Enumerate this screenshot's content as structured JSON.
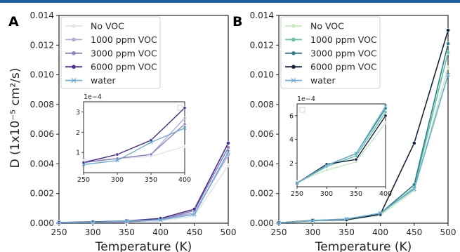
{
  "chart_data": [
    {
      "panel": "A",
      "type": "line",
      "xlabel": "Temperature (K)",
      "ylabel": "D (1x10⁻⁵ cm²/s)",
      "xlim": [
        250,
        500
      ],
      "ylim": [
        0,
        0.014
      ],
      "xticks": [
        "250",
        "300",
        "350",
        "400",
        "450",
        "500"
      ],
      "yticks": [
        "0.000",
        "0.002",
        "0.004",
        "0.006",
        "0.008",
        "0.010",
        "0.012",
        "0.014"
      ],
      "legend_position": "top-left",
      "series": [
        {
          "name": "No VOC",
          "color": "#e3e3ee",
          "marker": "circle",
          "x": [
            250,
            300,
            350,
            400,
            450,
            500
          ],
          "y": [
            6e-05,
            7e-05,
            8e-05,
            0.00013,
            0.0005,
            0.0039
          ]
        },
        {
          "name": "1000 ppm VOC",
          "color": "#b6abd6",
          "marker": "circle",
          "x": [
            250,
            300,
            350,
            400,
            450,
            500
          ],
          "y": [
            5e-05,
            7e-05,
            9e-05,
            0.00027,
            0.0007,
            0.0046
          ]
        },
        {
          "name": "3000 ppm VOC",
          "color": "#8f83bd",
          "marker": "circle",
          "x": [
            250,
            300,
            350,
            400,
            450,
            500
          ],
          "y": [
            5e-05,
            7e-05,
            9e-05,
            0.00024,
            0.00085,
            0.0051
          ]
        },
        {
          "name": "6000 ppm VOC",
          "color": "#4b2c8f",
          "marker": "circle",
          "x": [
            250,
            300,
            350,
            400,
            450,
            500
          ],
          "y": [
            5e-05,
            9e-05,
            0.00016,
            0.00032,
            0.00095,
            0.0054
          ]
        },
        {
          "name": "water",
          "color": "#6aaed6",
          "marker": "x",
          "x": [
            250,
            300,
            350,
            400,
            450,
            500
          ],
          "y": [
            4e-05,
            6e-05,
            0.00015,
            0.00022,
            0.0006,
            0.0048
          ]
        }
      ],
      "inset": {
        "xlim": [
          250,
          400
        ],
        "ylim": [
          0,
          0.00035
        ],
        "xticks": [
          "250",
          "300",
          "350",
          "400"
        ],
        "yticks": [
          "1",
          "2",
          "3"
        ],
        "offset_label": "1e−4"
      }
    },
    {
      "panel": "B",
      "type": "line",
      "xlabel": "Temperature (K)",
      "ylabel": "",
      "xlim": [
        250,
        500
      ],
      "ylim": [
        0,
        0.014
      ],
      "xticks": [
        "250",
        "300",
        "350",
        "400",
        "450",
        "500"
      ],
      "yticks": [
        "0.000",
        "0.002",
        "0.004",
        "0.006",
        "0.008",
        "0.010",
        "0.012",
        "0.014"
      ],
      "legend_position": "top-left",
      "series": [
        {
          "name": "No VOC",
          "color": "#c7e9c0",
          "marker": "circle",
          "x": [
            250,
            300,
            350,
            400,
            450,
            500
          ],
          "y": [
            4e-05,
            0.00014,
            0.00021,
            0.00054,
            0.0022,
            0.0105
          ]
        },
        {
          "name": "1000 ppm VOC",
          "color": "#66c2a4",
          "marker": "circle",
          "x": [
            250,
            300,
            350,
            400,
            450,
            500
          ],
          "y": [
            3e-05,
            0.00017,
            0.00026,
            0.00063,
            0.0024,
            0.0115
          ]
        },
        {
          "name": "3000 ppm VOC",
          "color": "#2c7f86",
          "marker": "circle",
          "x": [
            250,
            300,
            350,
            400,
            450,
            500
          ],
          "y": [
            3e-05,
            0.00018,
            0.00028,
            0.00066,
            0.0026,
            0.0121
          ]
        },
        {
          "name": "6000 ppm VOC",
          "color": "#14213d",
          "marker": "circle",
          "x": [
            250,
            300,
            350,
            400,
            450,
            500
          ],
          "y": [
            3e-05,
            0.00019,
            0.00023,
            0.0006,
            0.0054,
            0.013
          ]
        },
        {
          "name": "water",
          "color": "#6aaed6",
          "marker": "x",
          "x": [
            250,
            300,
            350,
            400,
            450,
            500
          ],
          "y": [
            3e-05,
            0.00018,
            0.00028,
            0.00068,
            0.0023,
            0.01
          ]
        }
      ],
      "inset": {
        "xlim": [
          250,
          400
        ],
        "ylim": [
          0,
          0.0007
        ],
        "xticks": [
          "250",
          "300",
          "350",
          "400"
        ],
        "yticks": [
          "2",
          "4",
          "6"
        ],
        "offset_label": "1e−4"
      }
    }
  ]
}
